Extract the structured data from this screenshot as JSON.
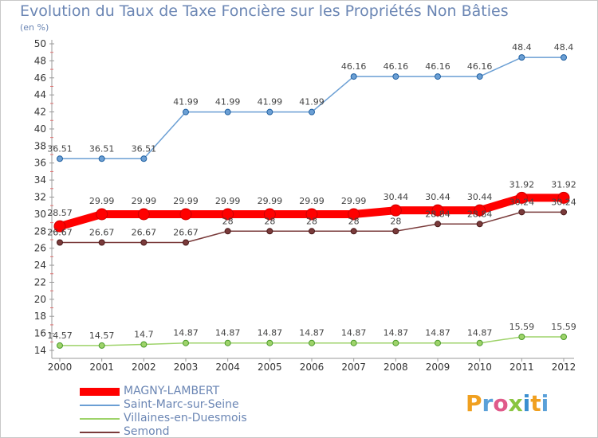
{
  "chart_data": {
    "type": "line",
    "title": "Evolution du Taux de Taxe Foncière sur les Propriétés Non Bâties",
    "subtitle": "(en %)",
    "x": [
      "2000",
      "2001",
      "2002",
      "2003",
      "2004",
      "2005",
      "2006",
      "2007",
      "2008",
      "2009",
      "2010",
      "2011",
      "2012"
    ],
    "y_ticks": [
      "14",
      "16",
      "18",
      "20",
      "22",
      "24",
      "26",
      "28",
      "30",
      "32",
      "34",
      "36",
      "38",
      "40",
      "42",
      "44",
      "46",
      "48",
      "50"
    ],
    "ylim": [
      14,
      50
    ],
    "grid": false,
    "legend_position": "bottom-left",
    "series": [
      {
        "name": "MAGNY-LAMBERT",
        "color": "#ff0000",
        "values": [
          28.57,
          29.99,
          29.99,
          29.99,
          29.99,
          29.99,
          29.99,
          29.99,
          30.44,
          30.44,
          30.44,
          31.92,
          31.92
        ],
        "labels": [
          "28.57",
          "29.99",
          "29.99",
          "29.99",
          "29.99",
          "29.99",
          "29.99",
          "29.99",
          "30.44",
          "30.44",
          "30.44",
          "31.92",
          "31.92"
        ]
      },
      {
        "name": "Saint-Marc-sur-Seine",
        "color": "#6b9fd4",
        "values": [
          36.51,
          36.51,
          36.51,
          41.99,
          41.99,
          41.99,
          41.99,
          46.16,
          46.16,
          46.16,
          46.16,
          48.4,
          48.4
        ],
        "labels": [
          "36.51",
          "36.51",
          "36.51",
          "41.99",
          "41.99",
          "41.99",
          "41.99",
          "46.16",
          "46.16",
          "46.16",
          "46.16",
          "48.4",
          "48.4"
        ]
      },
      {
        "name": "Villaines-en-Duesmois",
        "color": "#9ed36a",
        "values": [
          14.57,
          14.57,
          14.7,
          14.87,
          14.87,
          14.87,
          14.87,
          14.87,
          14.87,
          14.87,
          14.87,
          15.59,
          15.59
        ],
        "labels": [
          "14.57",
          "14.57",
          "14.7",
          "14.87",
          "14.87",
          "14.87",
          "14.87",
          "14.87",
          "14.87",
          "14.87",
          "14.87",
          "15.59",
          "15.59"
        ]
      },
      {
        "name": "Semond",
        "color": "#7a3b3b",
        "values": [
          26.67,
          26.67,
          26.67,
          26.67,
          28,
          28,
          28,
          28,
          28,
          28.84,
          28.84,
          30.24,
          30.24
        ],
        "labels": [
          "26.67",
          "26.67",
          "26.67",
          "26.67",
          "28",
          "28",
          "28",
          "28",
          "28",
          "28.84",
          "28.84",
          "30.24",
          "30.24"
        ]
      }
    ]
  },
  "logo": {
    "text": "Proxiti"
  }
}
